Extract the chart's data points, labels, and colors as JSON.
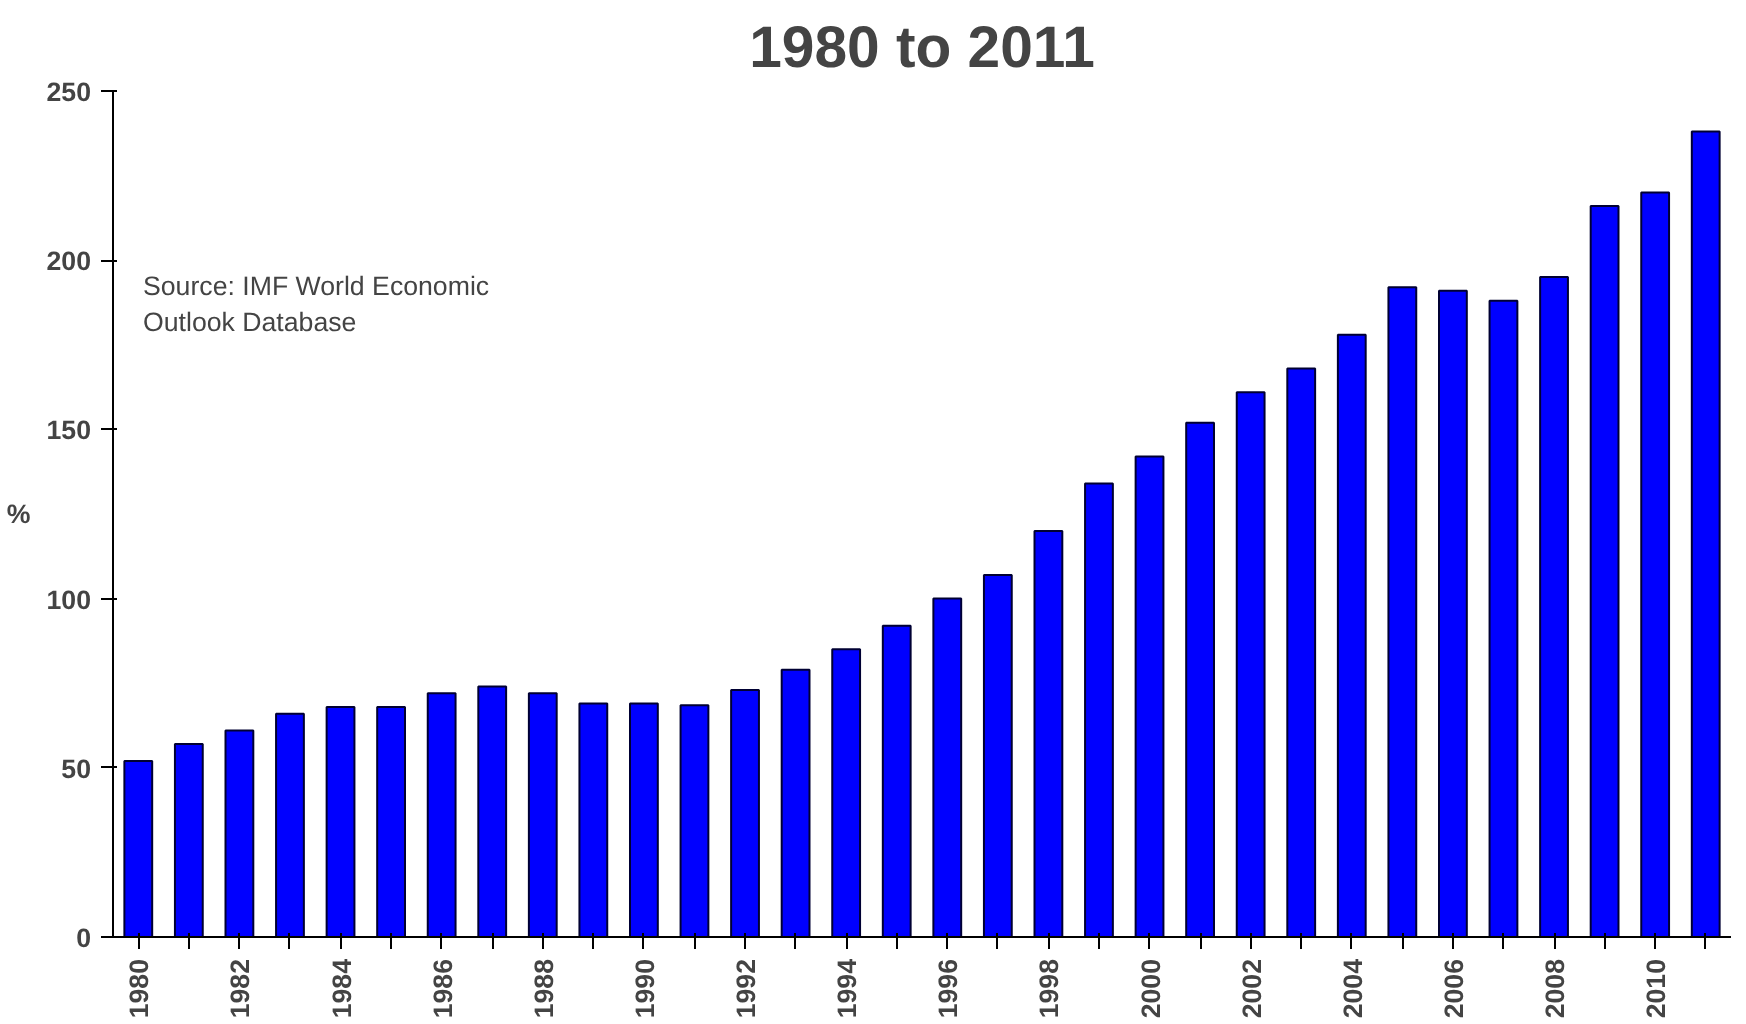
{
  "chart_data": {
    "type": "bar",
    "title": "1980 to 2011",
    "ylabel": "%",
    "categories": [
      "1980",
      null,
      "1982",
      null,
      "1984",
      null,
      "1986",
      null,
      "1988",
      null,
      "1990",
      null,
      "1992",
      null,
      "1994",
      null,
      "1996",
      null,
      "1998",
      null,
      "2000",
      null,
      "2002",
      null,
      "2004",
      null,
      "2006",
      null,
      "2008",
      null,
      "2010",
      null
    ],
    "values": [
      52,
      57,
      61,
      66,
      68,
      68,
      72,
      74,
      72,
      69,
      69,
      68.5,
      73,
      79,
      85,
      92,
      100,
      107,
      120,
      134,
      142,
      152,
      161,
      168,
      178,
      192,
      191,
      188,
      195,
      216,
      220,
      238
    ],
    "color": "#0000ff",
    "ylim": [
      0,
      250
    ],
    "yticks": [
      0,
      50,
      100,
      150,
      200,
      250
    ],
    "annotations": [
      "Source:  IMF World Economic\n        Outlook Database"
    ]
  }
}
